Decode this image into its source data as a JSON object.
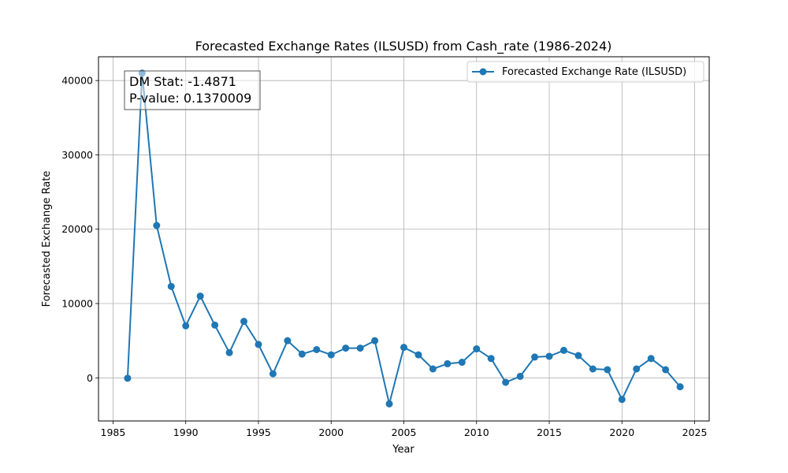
{
  "chart_data": {
    "type": "line",
    "title": "Forecasted Exchange Rates (ILSUSD) from Cash_rate (1986-2024)",
    "xlabel": "Year",
    "ylabel": "Forecasted Exchange Rate",
    "xlim": [
      1984,
      2026
    ],
    "ylim": [
      -5800,
      43200
    ],
    "x_ticks": [
      1985,
      1990,
      1995,
      2000,
      2005,
      2010,
      2015,
      2020,
      2025
    ],
    "y_ticks": [
      0,
      10000,
      20000,
      30000,
      40000
    ],
    "grid": true,
    "legend_position": "top-right",
    "series": [
      {
        "name": "Forecasted Exchange Rate (ILSUSD)",
        "color": "#1f77b4",
        "marker": "circle",
        "x": [
          1986,
          1987,
          1988,
          1989,
          1990,
          1991,
          1992,
          1993,
          1994,
          1995,
          1996,
          1997,
          1998,
          1999,
          2000,
          2001,
          2002,
          2003,
          2004,
          2005,
          2006,
          2007,
          2008,
          2009,
          2010,
          2011,
          2012,
          2013,
          2014,
          2015,
          2016,
          2017,
          2018,
          2019,
          2020,
          2021,
          2022,
          2023,
          2024
        ],
        "y": [
          -50,
          41000,
          20500,
          12300,
          7000,
          11000,
          7100,
          3400,
          7600,
          4500,
          550,
          5000,
          3200,
          3800,
          3100,
          4000,
          4000,
          5000,
          -3500,
          4100,
          3100,
          1200,
          1900,
          2100,
          3900,
          2600,
          -600,
          200,
          2800,
          2900,
          3700,
          3000,
          1200,
          1100,
          -2900,
          1200,
          2600,
          1100,
          -1200
        ]
      }
    ],
    "annotation": {
      "line1": "DM Stat: -1.4871",
      "line2": "P-value: 0.1370009"
    }
  }
}
